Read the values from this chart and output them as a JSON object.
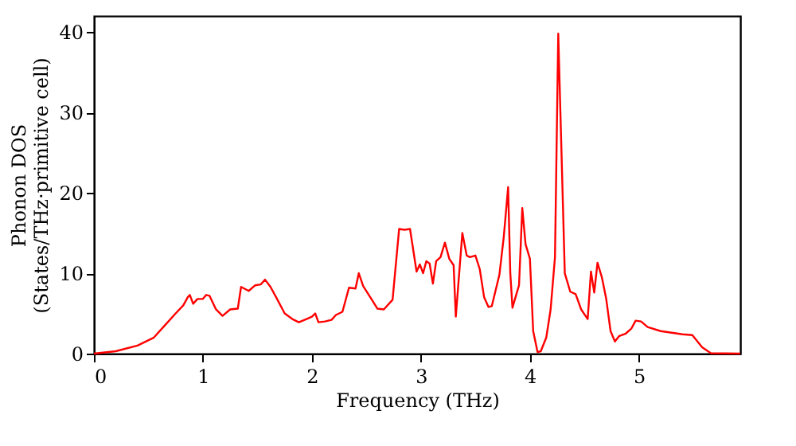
{
  "chart_data": {
    "type": "line",
    "xlabel": "Frequency (THz)",
    "ylabel": "Phonon DOS\n(States/THz·primitive cell)",
    "xlim": [
      0,
      5.93
    ],
    "ylim": [
      0,
      42
    ],
    "xticks": [
      0,
      1,
      2,
      3,
      4,
      5
    ],
    "yticks": [
      0,
      10,
      20,
      30,
      40
    ],
    "grid": false,
    "marker": "none",
    "line_style": "solid",
    "series": [
      {
        "color": "#ff0000",
        "x": [
          0,
          0.2,
          0.4,
          0.55,
          0.65,
          0.75,
          0.82,
          0.86,
          0.88,
          0.91,
          0.95,
          1.0,
          1.03,
          1.06,
          1.12,
          1.18,
          1.25,
          1.32,
          1.35,
          1.42,
          1.48,
          1.53,
          1.57,
          1.62,
          1.68,
          1.75,
          1.82,
          1.88,
          1.95,
          2.0,
          2.03,
          2.06,
          2.12,
          2.18,
          2.22,
          2.28,
          2.34,
          2.4,
          2.43,
          2.47,
          2.55,
          2.6,
          2.66,
          2.74,
          2.8,
          2.85,
          2.9,
          2.96,
          2.99,
          3.02,
          3.05,
          3.08,
          3.11,
          3.14,
          3.18,
          3.22,
          3.26,
          3.3,
          3.32,
          3.38,
          3.42,
          3.45,
          3.5,
          3.54,
          3.58,
          3.62,
          3.65,
          3.72,
          3.76,
          3.8,
          3.82,
          3.84,
          3.9,
          3.93,
          3.96,
          4.0,
          4.03,
          4.07,
          4.1,
          4.15,
          4.19,
          4.23,
          4.26,
          4.32,
          4.37,
          4.42,
          4.47,
          4.53,
          4.56,
          4.59,
          4.62,
          4.66,
          4.7,
          4.74,
          4.78,
          4.82,
          4.88,
          4.93,
          4.97,
          5.02,
          5.08,
          5.2,
          5.4,
          5.49,
          5.58,
          5.66,
          5.93
        ],
        "values": [
          0,
          0.3,
          1,
          2,
          3.5,
          5,
          6,
          7,
          7.3,
          6.2,
          6.8,
          6.8,
          7.3,
          7.2,
          5.5,
          4.7,
          5.5,
          5.6,
          8.3,
          7.8,
          8.5,
          8.6,
          9.2,
          8.3,
          6.8,
          5,
          4.3,
          3.9,
          4.3,
          4.6,
          5,
          3.9,
          4.0,
          4.2,
          4.8,
          5.2,
          8.2,
          8.1,
          10,
          8.4,
          6.7,
          5.6,
          5.5,
          6.7,
          15.5,
          15.4,
          15.5,
          10.2,
          11.1,
          10,
          11.5,
          11.2,
          8.7,
          11.5,
          12,
          13.8,
          11.8,
          11,
          4.6,
          15,
          12.2,
          12,
          12.2,
          10.5,
          7,
          5.8,
          5.9,
          9.8,
          14.5,
          20.7,
          10,
          5.7,
          8.5,
          18.1,
          13.6,
          11.8,
          2.8,
          0.2,
          0.3,
          2,
          5.5,
          12,
          39.8,
          10,
          7.7,
          7.4,
          5.5,
          4.3,
          10.2,
          7.6,
          11.3,
          9.5,
          6.8,
          2.8,
          1.5,
          2.2,
          2.5,
          3.1,
          4.1,
          4.0,
          3.3,
          2.8,
          2.4,
          2.3,
          0.8,
          0.05,
          0
        ]
      }
    ]
  }
}
